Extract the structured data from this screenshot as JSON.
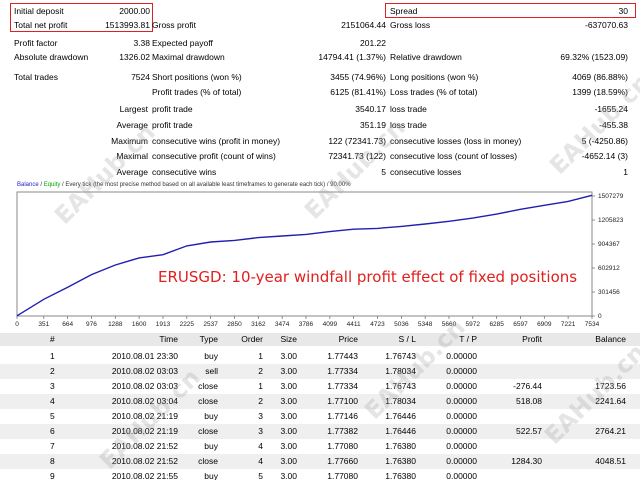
{
  "stats": {
    "initial_deposit": {
      "label": "Initial deposit",
      "value": "2000.00"
    },
    "total_net_profit": {
      "label": "Total net profit",
      "value": "1513993.81"
    },
    "gross_profit": {
      "label": "Gross profit",
      "value": "2151064.44"
    },
    "gross_loss": {
      "label": "Gross loss",
      "value": "-637070.63"
    },
    "spread": {
      "label": "Spread",
      "value": "30"
    },
    "profit_factor": {
      "label": "Profit factor",
      "value": "3.38"
    },
    "expected_payoff": {
      "label": "Expected payoff",
      "value": "201.22"
    },
    "absolute_drawdown": {
      "label": "Absolute drawdown",
      "value": "1326.02"
    },
    "maximal_drawdown": {
      "label": "Maximal drawdown",
      "value": "14794.41 (1.37%)"
    },
    "relative_drawdown": {
      "label": "Relative drawdown",
      "value": "69.32% (1523.09)"
    },
    "total_trades": {
      "label": "Total trades",
      "value": "7524"
    },
    "short_positions": {
      "label": "Short positions (won %)",
      "value": "3455 (74.96%)"
    },
    "long_positions": {
      "label": "Long positions (won %)",
      "value": "4069 (86.88%)"
    },
    "profit_trades": {
      "label": "Profit trades (% of total)",
      "value": "6125 (81.41%)"
    },
    "loss_trades": {
      "label": "Loss trades (% of total)",
      "value": "1399 (18.59%)"
    },
    "largest_label": "Largest",
    "largest_profit_trade": {
      "label": "profit trade",
      "value": "3540.17"
    },
    "largest_loss_trade": {
      "label": "loss trade",
      "value": "-1655.24"
    },
    "average_label": "Average",
    "average_profit_trade": {
      "label": "profit trade",
      "value": "351.19"
    },
    "average_loss_trade": {
      "label": "loss trade",
      "value": "-455.38"
    },
    "maximum_label": "Maximum",
    "max_consec_wins": {
      "label": "consecutive wins (profit in money)",
      "value": "122 (72341.73)"
    },
    "max_consec_losses": {
      "label": "consecutive losses (loss in money)",
      "value": "5 (-4250.86)"
    },
    "maximal_label": "Maximal",
    "maximal_consec_profit": {
      "label": "consecutive profit (count of wins)",
      "value": "72341.73 (122)"
    },
    "maximal_consec_loss": {
      "label": "consecutive loss (count of losses)",
      "value": "-4652.14 (3)"
    },
    "average2_label": "Average",
    "avg_consec_wins": {
      "label": "consecutive wins",
      "value": "5"
    },
    "avg_consec_losses": {
      "label": "consecutive losses",
      "value": "1"
    }
  },
  "chart_data": {
    "type": "line",
    "legend_prefix": "Balance",
    "legend_sep": " / ",
    "legend_equity": "Equity",
    "legend_suffix": " / Every tick (the most precise method based on all available least timeframes to generate each tick) / 90.00%",
    "x_ticks": [
      "0",
      "351",
      "664",
      "976",
      "1288",
      "1600",
      "1913",
      "2225",
      "2537",
      "2850",
      "3162",
      "3474",
      "3786",
      "4099",
      "4411",
      "4723",
      "5036",
      "5348",
      "5660",
      "5972",
      "6285",
      "6597",
      "6909",
      "7221",
      "7534"
    ],
    "y_ticks": [
      "1507279",
      "1205823",
      "904367",
      "602912",
      "301456",
      "0"
    ],
    "xlim": [
      0,
      7534
    ],
    "ylim": [
      0,
      1507279
    ],
    "series": [
      {
        "name": "Balance",
        "color": "#2020b0",
        "x": [
          0,
          351,
          664,
          976,
          1288,
          1600,
          1913,
          2225,
          2537,
          2850,
          3162,
          3474,
          3786,
          4099,
          4411,
          4723,
          5036,
          5348,
          5660,
          5972,
          6285,
          6597,
          6909,
          7221,
          7534
        ],
        "y": [
          2000,
          210000,
          360000,
          520000,
          640000,
          730000,
          770000,
          880000,
          930000,
          950000,
          985000,
          1005000,
          1025000,
          1060000,
          1090000,
          1100000,
          1125000,
          1155000,
          1190000,
          1230000,
          1280000,
          1340000,
          1390000,
          1440000,
          1515994
        ]
      }
    ],
    "annotation": "ERUSGD: 10-year windfall profit effect of fixed positions"
  },
  "table": {
    "headers": [
      "#",
      "Time",
      "Type",
      "Order",
      "Size",
      "Price",
      "S / L",
      "T / P",
      "Profit",
      "Balance"
    ],
    "rows": [
      [
        "1",
        "2010.08.01 23:30",
        "buy",
        "1",
        "3.00",
        "1.77443",
        "1.76743",
        "0.00000",
        "",
        ""
      ],
      [
        "2",
        "2010.08.02 03:03",
        "sell",
        "2",
        "3.00",
        "1.77334",
        "1.78034",
        "0.00000",
        "",
        ""
      ],
      [
        "3",
        "2010.08.02 03:03",
        "close",
        "1",
        "3.00",
        "1.77334",
        "1.76743",
        "0.00000",
        "-276.44",
        "1723.56"
      ],
      [
        "4",
        "2010.08.02 03:04",
        "close",
        "2",
        "3.00",
        "1.77100",
        "1.78034",
        "0.00000",
        "518.08",
        "2241.64"
      ],
      [
        "5",
        "2010.08.02 21:19",
        "buy",
        "3",
        "3.00",
        "1.77146",
        "1.76446",
        "0.00000",
        "",
        ""
      ],
      [
        "6",
        "2010.08.02 21:19",
        "close",
        "3",
        "3.00",
        "1.77382",
        "1.76446",
        "0.00000",
        "522.57",
        "2764.21"
      ],
      [
        "7",
        "2010.08.02 21:52",
        "buy",
        "4",
        "3.00",
        "1.77080",
        "1.76380",
        "0.00000",
        "",
        ""
      ],
      [
        "8",
        "2010.08.02 21:52",
        "close",
        "4",
        "3.00",
        "1.77660",
        "1.76380",
        "0.00000",
        "1284.30",
        "4048.51"
      ],
      [
        "9",
        "2010.08.02 21:55",
        "buy",
        "5",
        "3.00",
        "1.77080",
        "1.76380",
        "0.00000",
        "",
        ""
      ]
    ]
  },
  "watermark": "EAHub.cn"
}
